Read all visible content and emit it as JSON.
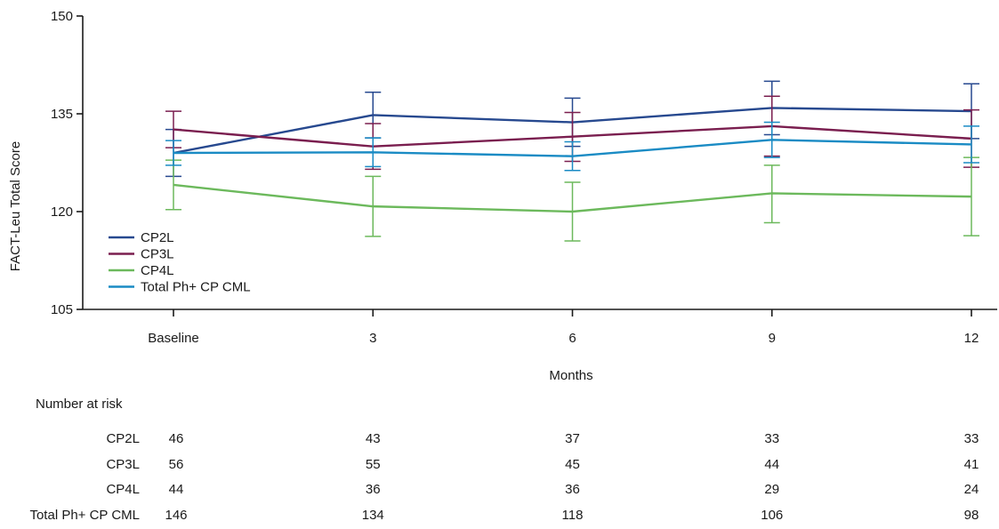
{
  "chart_data": {
    "type": "line",
    "title": "",
    "xlabel": "Months",
    "ylabel": "FACT-Leu Total Score",
    "categories": [
      "Baseline",
      "3",
      "6",
      "9",
      "12"
    ],
    "ylim": [
      105,
      150
    ],
    "yticks": [
      105,
      120,
      135,
      150
    ],
    "legend_position": "lower-left",
    "error_bars": true,
    "series": [
      {
        "name": "CP2L",
        "color": "#27498f",
        "values": [
          129.0,
          134.8,
          133.7,
          135.9,
          135.4
        ],
        "lower": [
          125.4,
          131.3,
          130.0,
          131.8,
          131.2
        ],
        "upper": [
          132.6,
          138.3,
          137.4,
          140.0,
          139.6
        ]
      },
      {
        "name": "CP3L",
        "color": "#7a1e4f",
        "values": [
          132.6,
          130.0,
          131.5,
          133.1,
          131.2
        ],
        "lower": [
          129.8,
          126.5,
          127.7,
          128.5,
          126.8
        ],
        "upper": [
          135.4,
          133.5,
          135.2,
          137.7,
          135.6
        ]
      },
      {
        "name": "CP4L",
        "color": "#6cb95c",
        "values": [
          124.1,
          120.8,
          120.0,
          122.8,
          122.3
        ],
        "lower": [
          120.3,
          116.2,
          115.5,
          118.3,
          116.3
        ],
        "upper": [
          127.9,
          125.4,
          124.5,
          127.1,
          128.3
        ]
      },
      {
        "name": "Total Ph+ CP CML",
        "color": "#1a8bc4",
        "values": [
          129.0,
          129.1,
          128.5,
          131.0,
          130.3
        ],
        "lower": [
          127.1,
          126.9,
          126.3,
          128.3,
          127.5
        ],
        "upper": [
          130.9,
          131.3,
          130.7,
          133.7,
          133.1
        ]
      }
    ]
  },
  "risk_table": {
    "title": "Number at risk",
    "rows": [
      {
        "label": "CP2L",
        "values": [
          "46",
          "43",
          "37",
          "33",
          "33"
        ]
      },
      {
        "label": "CP3L",
        "values": [
          "56",
          "55",
          "45",
          "44",
          "41"
        ]
      },
      {
        "label": "CP4L",
        "values": [
          "44",
          "36",
          "36",
          "29",
          "24"
        ]
      },
      {
        "label": "Total Ph+ CP CML",
        "values": [
          "146",
          "134",
          "118",
          "106",
          "98"
        ]
      }
    ]
  }
}
